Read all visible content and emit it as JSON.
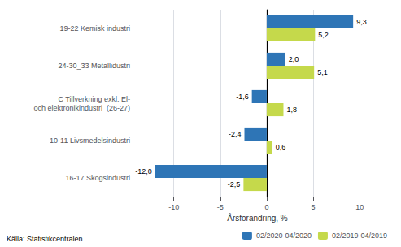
{
  "chart_data": {
    "type": "bar",
    "orientation": "horizontal",
    "categories": [
      "16-17 Skogsindustri",
      "10-11 Livsmedelsindustri",
      "C Tillverkning exkl. El-\noch elektronikindustri  (26-27)",
      "24-30_33 Metallidustri",
      "19-22 Kemisk industri"
    ],
    "series": [
      {
        "name": "02/2020-04/2020",
        "color": "#2E75B6",
        "values": [
          -12.0,
          -2.4,
          -1.6,
          2.0,
          9.3
        ],
        "value_labels": [
          "-12,0",
          "-2,4",
          "-1,6",
          "2,0",
          "9,3"
        ]
      },
      {
        "name": "02/2019-04/2019",
        "color": "#C5D94B",
        "values": [
          -2.5,
          0.6,
          1.8,
          5.1,
          5.2
        ],
        "value_labels": [
          "-2,5",
          "0,6",
          "1,8",
          "5,1",
          "5,2"
        ]
      }
    ],
    "xlabel": "Årsförändring, %",
    "xlim": [
      -14,
      12
    ],
    "xticks": [
      -10,
      -5,
      0,
      5,
      10
    ],
    "grid": true,
    "data_labels": true,
    "legend": "bottom",
    "annotations": [
      "Källa: Statistikcentralen"
    ]
  }
}
